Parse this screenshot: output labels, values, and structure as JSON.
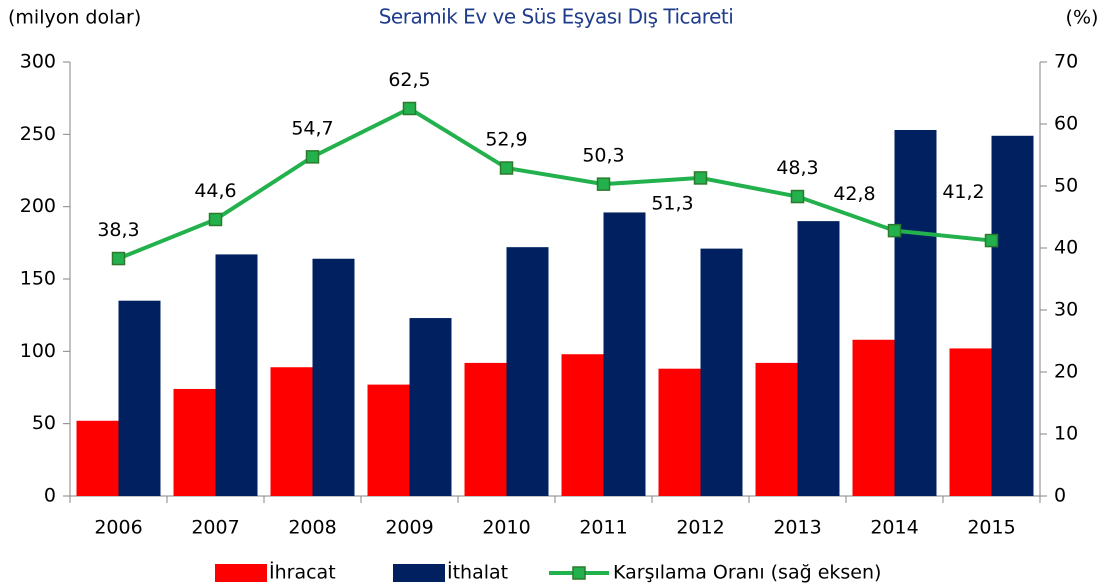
{
  "chart_data": {
    "type": "bar_line",
    "title": "Seramik Ev ve Süs Eşyası Dış Ticareti",
    "y_label": "(milyon dolar)",
    "y2_label": "(%)",
    "categories": [
      "2006",
      "2007",
      "2008",
      "2009",
      "2010",
      "2011",
      "2012",
      "2013",
      "2014",
      "2015"
    ],
    "series": [
      {
        "name": "İhracat",
        "color": "#ff0000",
        "kind": "bar",
        "values": [
          52,
          74,
          89,
          77,
          92,
          98,
          88,
          92,
          108,
          102
        ]
      },
      {
        "name": "İthalat",
        "color": "#002060",
        "kind": "bar",
        "values": [
          135,
          167,
          164,
          123,
          172,
          196,
          171,
          190,
          253,
          249
        ]
      },
      {
        "name": "Karşılama Oranı (sağ eksen)",
        "color": "#22b14c",
        "kind": "line",
        "axis": "y2",
        "values": [
          38.3,
          44.6,
          54.7,
          62.5,
          52.9,
          50.3,
          51.3,
          48.3,
          42.8,
          41.2
        ],
        "value_labels": [
          "38,3",
          "44,6",
          "54,7",
          "62,5",
          "52,9",
          "50,3",
          "51,3",
          "48,3",
          "42,8",
          "41,2"
        ]
      }
    ],
    "ylim": [
      0,
      300
    ],
    "yticks": [
      0,
      50,
      100,
      150,
      200,
      250,
      300
    ],
    "y2lim": [
      0,
      70
    ],
    "y2ticks": [
      0,
      10,
      20,
      30,
      40,
      50,
      60,
      70
    ],
    "legend": "bottom"
  }
}
